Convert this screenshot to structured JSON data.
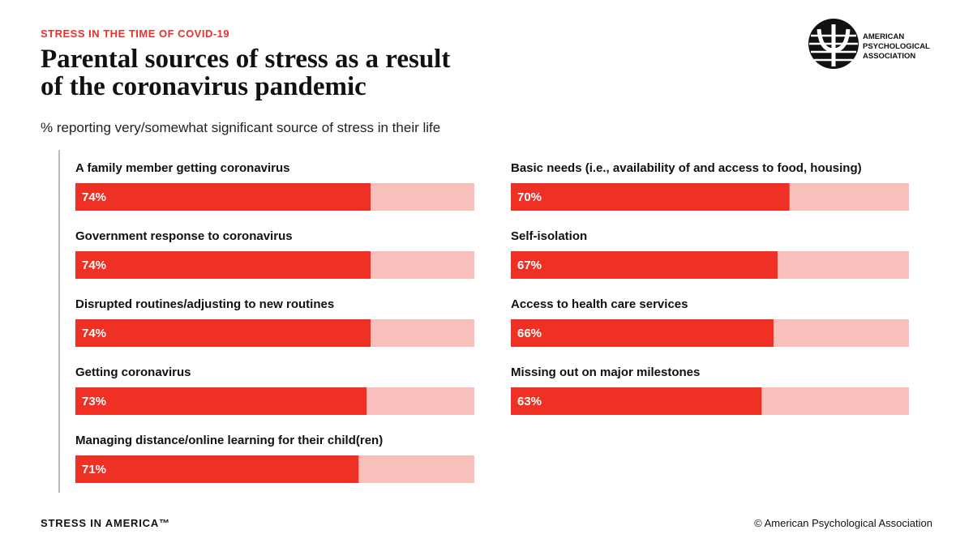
{
  "chart_data": {
    "type": "bar",
    "kicker": "STRESS IN THE TIME OF COVID-19",
    "title": "Parental sources of stress as a result\nof the coronavirus pandemic",
    "subtitle": "% reporting very/somewhat significant source of stress in their life",
    "categories": [
      "A family member getting coronavirus",
      "Government response to coronavirus",
      "Disrupted routines/adjusting to new routines",
      "Getting coronavirus",
      "Managing distance/online learning for their child(ren)",
      "Basic needs (i.e., availability of and access to food, housing)",
      "Self-isolation",
      "Access to health care services",
      "Missing out on major milestones"
    ],
    "values": [
      74,
      74,
      74,
      73,
      71,
      70,
      67,
      66,
      63
    ],
    "value_labels": [
      "74%",
      "74%",
      "74%",
      "73%",
      "71%",
      "70%",
      "67%",
      "66%",
      "63%"
    ],
    "color": "#ee3124",
    "track_color": "#f9c0bb",
    "xlim": [
      0,
      100
    ],
    "footer_left": "STRESS IN AMERICA™",
    "footer_right": "© American Psychological Association",
    "logo_text": "AMERICAN\nPSYCHOLOGICAL\nASSOCIATION"
  }
}
